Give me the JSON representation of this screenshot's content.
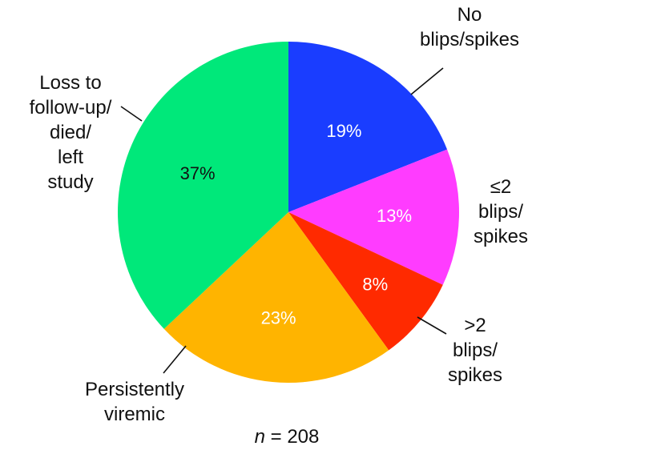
{
  "chart_data": {
    "type": "pie",
    "slices": [
      {
        "label": "No\nblips/spikes",
        "value": 19,
        "value_label": "19%",
        "color": "#1a3dff",
        "value_label_color": "#ffffff"
      },
      {
        "label": "≤2\nblips/\nspikes",
        "value": 13,
        "value_label": "13%",
        "color": "#ff3cff",
        "value_label_color": "#ffffff"
      },
      {
        "label": ">2\nblips/\nspikes",
        "value": 8,
        "value_label": "8%",
        "color": "#ff2a00",
        "value_label_color": "#ffffff"
      },
      {
        "label": "Persistently\nviremic",
        "value": 23,
        "value_label": "23%",
        "color": "#ffb400",
        "value_label_color": "#ffffff"
      },
      {
        "label": "Loss to\nfollow-up/\ndied/\nleft\nstudy",
        "value": 37,
        "value_label": "37%",
        "color": "#00e87a",
        "value_label_color": "#111111"
      }
    ],
    "start": "top",
    "direction": "clockwise"
  },
  "note": {
    "italic": "n",
    "text": " = 208"
  }
}
